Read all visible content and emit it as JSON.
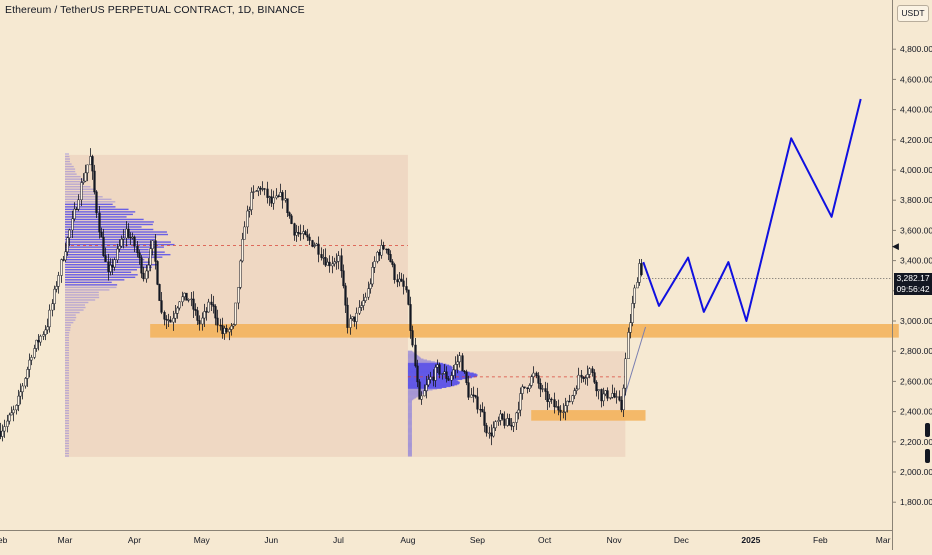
{
  "header": {
    "title": "Ethereum / TetherUS PERPETUAL CONTRACT, 1D, BINANCE"
  },
  "price_scale": {
    "currency": "USDT",
    "current_price": "3,282.17",
    "countdown": "09:56:42",
    "price_tag_color": "#131722"
  },
  "colors": {
    "background": "#f6e9d2",
    "candle": "#131722",
    "zone": "#f4b25a",
    "profile_box": "#ecd2bd",
    "profile": "#5b52e8",
    "projection": "#1010e0"
  },
  "icons": [
    "scroll-arrow-icon"
  ],
  "chart_data": {
    "type": "candlestick",
    "title": "Ethereum / TetherUS PERPETUAL CONTRACT, 1D, BINANCE",
    "ylim": [
      1660,
      5150
    ],
    "y_ticks": [
      1800,
      2000,
      2200,
      2400,
      2600,
      2800,
      3000,
      3200,
      3400,
      3600,
      3800,
      4000,
      4200,
      4400,
      4600,
      4800
    ],
    "y_tick_labels": [
      "1,800.00",
      "2,000.00",
      "2,200.00",
      "2,400.00",
      "2,600.00",
      "2,800.00",
      "3,000.00",
      "3,200.00",
      "3,400.00",
      "3,600.00",
      "3,800.00",
      "4,000.00",
      "4,200.00",
      "4,400.00",
      "4,600.00",
      "4,800.00"
    ],
    "x_ticks": [
      {
        "label": "Feb",
        "date": "2024-02-01"
      },
      {
        "label": "Mar",
        "date": "2024-03-01"
      },
      {
        "label": "Apr",
        "date": "2024-04-01"
      },
      {
        "label": "May",
        "date": "2024-05-01"
      },
      {
        "label": "Jun",
        "date": "2024-06-01"
      },
      {
        "label": "Jul",
        "date": "2024-07-01"
      },
      {
        "label": "Aug",
        "date": "2024-08-01"
      },
      {
        "label": "Sep",
        "date": "2024-09-01"
      },
      {
        "label": "Oct",
        "date": "2024-10-01"
      },
      {
        "label": "Nov",
        "date": "2024-11-01"
      },
      {
        "label": "Dec",
        "date": "2024-12-01"
      },
      {
        "label": "2025",
        "date": "2025-01-01"
      },
      {
        "label": "Feb",
        "date": "2025-02-01"
      },
      {
        "label": "Mar",
        "date": "2025-03-01"
      }
    ],
    "price_path": [
      [
        "2024-02-01",
        2270
      ],
      [
        "2024-02-08",
        2420
      ],
      [
        "2024-02-15",
        2790
      ],
      [
        "2024-02-22",
        2980
      ],
      [
        "2024-02-28",
        3380
      ],
      [
        "2024-03-04",
        3650
      ],
      [
        "2024-03-08",
        3900
      ],
      [
        "2024-03-12",
        4080
      ],
      [
        "2024-03-16",
        3620
      ],
      [
        "2024-03-20",
        3300
      ],
      [
        "2024-03-24",
        3450
      ],
      [
        "2024-03-28",
        3600
      ],
      [
        "2024-04-01",
        3500
      ],
      [
        "2024-04-05",
        3300
      ],
      [
        "2024-04-09",
        3500
      ],
      [
        "2024-04-13",
        3050
      ],
      [
        "2024-04-17",
        3000
      ],
      [
        "2024-04-21",
        3150
      ],
      [
        "2024-04-25",
        3150
      ],
      [
        "2024-04-30",
        2980
      ],
      [
        "2024-05-05",
        3120
      ],
      [
        "2024-05-10",
        2920
      ],
      [
        "2024-05-15",
        2950
      ],
      [
        "2024-05-20",
        3650
      ],
      [
        "2024-05-23",
        3820
      ],
      [
        "2024-05-27",
        3890
      ],
      [
        "2024-06-01",
        3780
      ],
      [
        "2024-06-06",
        3830
      ],
      [
        "2024-06-11",
        3600
      ],
      [
        "2024-06-16",
        3550
      ],
      [
        "2024-06-21",
        3500
      ],
      [
        "2024-06-26",
        3380
      ],
      [
        "2024-07-01",
        3420
      ],
      [
        "2024-07-05",
        2980
      ],
      [
        "2024-07-09",
        3030
      ],
      [
        "2024-07-14",
        3200
      ],
      [
        "2024-07-18",
        3450
      ],
      [
        "2024-07-22",
        3500
      ],
      [
        "2024-07-26",
        3300
      ],
      [
        "2024-07-31",
        3200
      ],
      [
        "2024-08-04",
        2700
      ],
      [
        "2024-08-06",
        2450
      ],
      [
        "2024-08-10",
        2600
      ],
      [
        "2024-08-14",
        2680
      ],
      [
        "2024-08-19",
        2620
      ],
      [
        "2024-08-24",
        2760
      ],
      [
        "2024-08-28",
        2520
      ],
      [
        "2024-09-02",
        2430
      ],
      [
        "2024-09-06",
        2240
      ],
      [
        "2024-09-11",
        2350
      ],
      [
        "2024-09-16",
        2300
      ],
      [
        "2024-09-21",
        2540
      ],
      [
        "2024-09-26",
        2640
      ],
      [
        "2024-10-01",
        2500
      ],
      [
        "2024-10-06",
        2420
      ],
      [
        "2024-10-11",
        2440
      ],
      [
        "2024-10-16",
        2620
      ],
      [
        "2024-10-21",
        2680
      ],
      [
        "2024-10-26",
        2500
      ],
      [
        "2024-10-31",
        2520
      ],
      [
        "2024-11-04",
        2420
      ],
      [
        "2024-11-07",
        2900
      ],
      [
        "2024-11-10",
        3200
      ],
      [
        "2024-11-12",
        3380
      ],
      [
        "2024-11-14",
        3282
      ]
    ],
    "projection": [
      [
        "2024-11-14",
        3390
      ],
      [
        "2024-11-21",
        3100
      ],
      [
        "2024-12-04",
        3420
      ],
      [
        "2024-12-11",
        3060
      ],
      [
        "2024-12-22",
        3390
      ],
      [
        "2024-12-30",
        3000
      ],
      [
        "2025-01-19",
        4210
      ],
      [
        "2025-02-06",
        3690
      ],
      [
        "2025-02-19",
        4470
      ]
    ],
    "zones": [
      {
        "from": "2024-04-08",
        "to": "2025-03-08",
        "low": 2890,
        "high": 2980
      },
      {
        "from": "2024-09-25",
        "to": "2024-11-15",
        "low": 2340,
        "high": 2410
      }
    ],
    "volume_profiles": [
      {
        "from": "2024-03-01",
        "to": "2024-08-01",
        "low": 2100,
        "high": 4100,
        "poc": 3500
      },
      {
        "from": "2024-08-01",
        "to": "2024-11-06",
        "low": 2100,
        "high": 2800,
        "poc": 2630
      }
    ],
    "grid": false
  }
}
